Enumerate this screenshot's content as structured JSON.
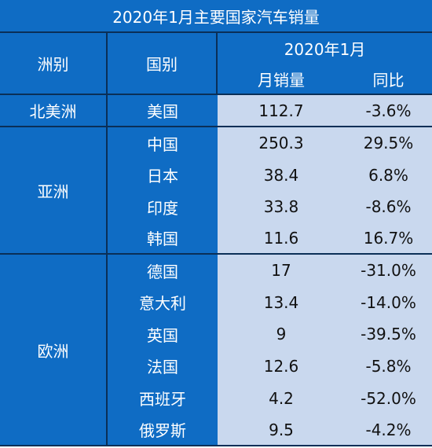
{
  "title": "2020年1月主要国家汽车销量",
  "header": {
    "continent": "洲别",
    "country": "国别",
    "period": "2020年1月",
    "sales": "月销量",
    "yoy": "同比"
  },
  "groups": [
    {
      "continent": "北美洲",
      "rows": [
        {
          "country": "美国",
          "sales": "112.7",
          "yoy": "-3.6%"
        }
      ]
    },
    {
      "continent": "亚洲",
      "rows": [
        {
          "country": "中国",
          "sales": "250.3",
          "yoy": "29.5%"
        },
        {
          "country": "日本",
          "sales": "38.4",
          "yoy": "6.8%"
        },
        {
          "country": "印度",
          "sales": "33.8",
          "yoy": "-8.6%"
        },
        {
          "country": "韩国",
          "sales": "11.6",
          "yoy": "16.7%"
        }
      ]
    },
    {
      "continent": "欧洲",
      "rows": [
        {
          "country": "德国",
          "sales": "17",
          "yoy": "-31.0%"
        },
        {
          "country": "意大利",
          "sales": "13.4",
          "yoy": "-14.0%"
        },
        {
          "country": "英国",
          "sales": "9",
          "yoy": "-39.5%"
        },
        {
          "country": "法国",
          "sales": "12.6",
          "yoy": "-5.8%"
        },
        {
          "country": "西班牙",
          "sales": "4.2",
          "yoy": "-52.0%"
        },
        {
          "country": "俄罗斯",
          "sales": "9.5",
          "yoy": "-4.2%"
        }
      ]
    }
  ],
  "colors": {
    "header_blue": "#0f6cc4",
    "value_bg": "#c9d8ee",
    "border": "#0a2f57"
  }
}
